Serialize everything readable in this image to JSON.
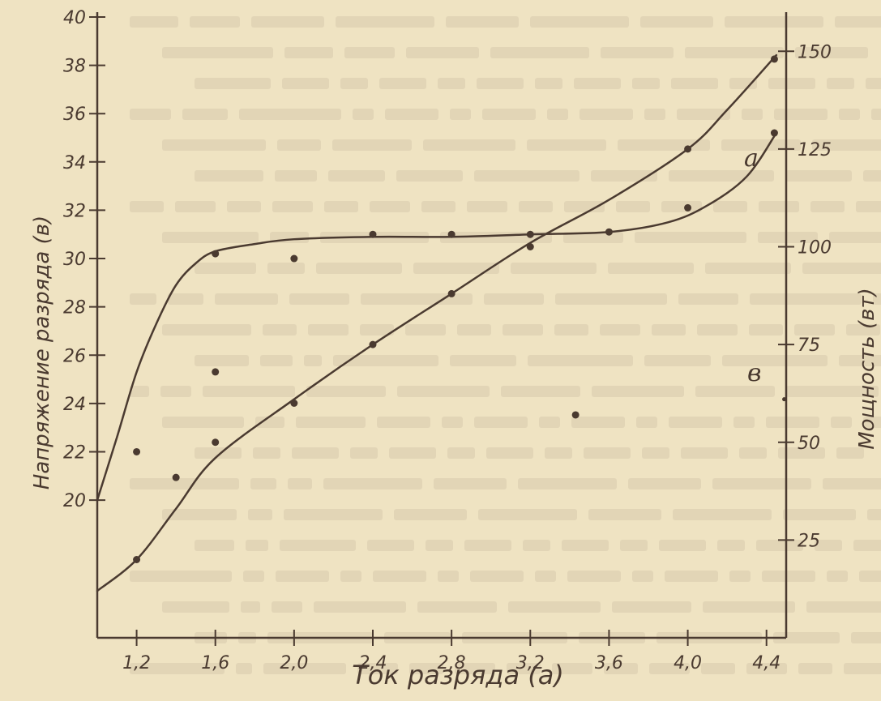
{
  "chart_data": {
    "type": "line",
    "x_label": "Ток разряда (а)",
    "y_left_label": "Напряжение разряда (в)",
    "y_right_label": "Мощность (вт)",
    "x_ticks": [
      "1,2",
      "1,6",
      "2,0",
      "2,4",
      "2,8",
      "3,2",
      "3,6",
      "4,0",
      "4,4"
    ],
    "x_tick_values": [
      1.2,
      1.6,
      2.0,
      2.4,
      2.8,
      3.2,
      3.6,
      4.0,
      4.4
    ],
    "y_left_ticks": [
      "20",
      "22",
      "24",
      "26",
      "28",
      "30",
      "32",
      "34",
      "36",
      "38",
      "40"
    ],
    "y_left_tick_values": [
      20,
      22,
      24,
      26,
      28,
      30,
      32,
      34,
      36,
      38,
      40
    ],
    "y_right_ticks": [
      "25",
      "50",
      "75",
      "100",
      "125",
      "150"
    ],
    "y_right_tick_values": [
      25,
      50,
      75,
      100,
      125,
      150
    ],
    "xlim": [
      1.0,
      4.5
    ],
    "ylim_left": [
      14.3,
      40.2
    ],
    "ylim_right": [
      0,
      160
    ],
    "series": [
      {
        "name": "а",
        "axis": "left",
        "points": [
          [
            1.2,
            22
          ],
          [
            1.6,
            30.2
          ],
          [
            2.0,
            30
          ],
          [
            2.4,
            31
          ],
          [
            2.8,
            31
          ],
          [
            3.2,
            31
          ],
          [
            3.6,
            31.1
          ],
          [
            4.0,
            32.1
          ],
          [
            4.44,
            35.2
          ]
        ],
        "curve": [
          [
            1.0,
            20
          ],
          [
            1.1,
            22.6
          ],
          [
            1.2,
            25.3
          ],
          [
            1.3,
            27.3
          ],
          [
            1.4,
            28.9
          ],
          [
            1.5,
            29.8
          ],
          [
            1.6,
            30.3
          ],
          [
            1.8,
            30.6
          ],
          [
            2.0,
            30.8
          ],
          [
            2.4,
            30.9
          ],
          [
            2.8,
            30.9
          ],
          [
            3.2,
            31
          ],
          [
            3.6,
            31.1
          ],
          [
            3.9,
            31.5
          ],
          [
            4.1,
            32.2
          ],
          [
            4.3,
            33.4
          ],
          [
            4.45,
            35.2
          ]
        ]
      },
      {
        "name": "в",
        "axis": "right",
        "points": [
          [
            1.2,
            20
          ],
          [
            1.4,
            41
          ],
          [
            1.6,
            50
          ],
          [
            1.6,
            68
          ],
          [
            2.0,
            60
          ],
          [
            2.4,
            75
          ],
          [
            2.8,
            88
          ],
          [
            3.2,
            100
          ],
          [
            3.43,
            57
          ],
          [
            4.0,
            125
          ],
          [
            4.44,
            148
          ]
        ],
        "curve": [
          [
            1.0,
            12
          ],
          [
            1.2,
            20
          ],
          [
            1.4,
            33
          ],
          [
            1.6,
            46
          ],
          [
            2.0,
            61
          ],
          [
            2.4,
            75
          ],
          [
            2.8,
            88
          ],
          [
            3.2,
            101
          ],
          [
            3.6,
            112
          ],
          [
            4.0,
            125
          ],
          [
            4.2,
            135
          ],
          [
            4.45,
            149
          ]
        ]
      }
    ],
    "stray_points": [
      [
        4.49,
        61
      ]
    ]
  }
}
